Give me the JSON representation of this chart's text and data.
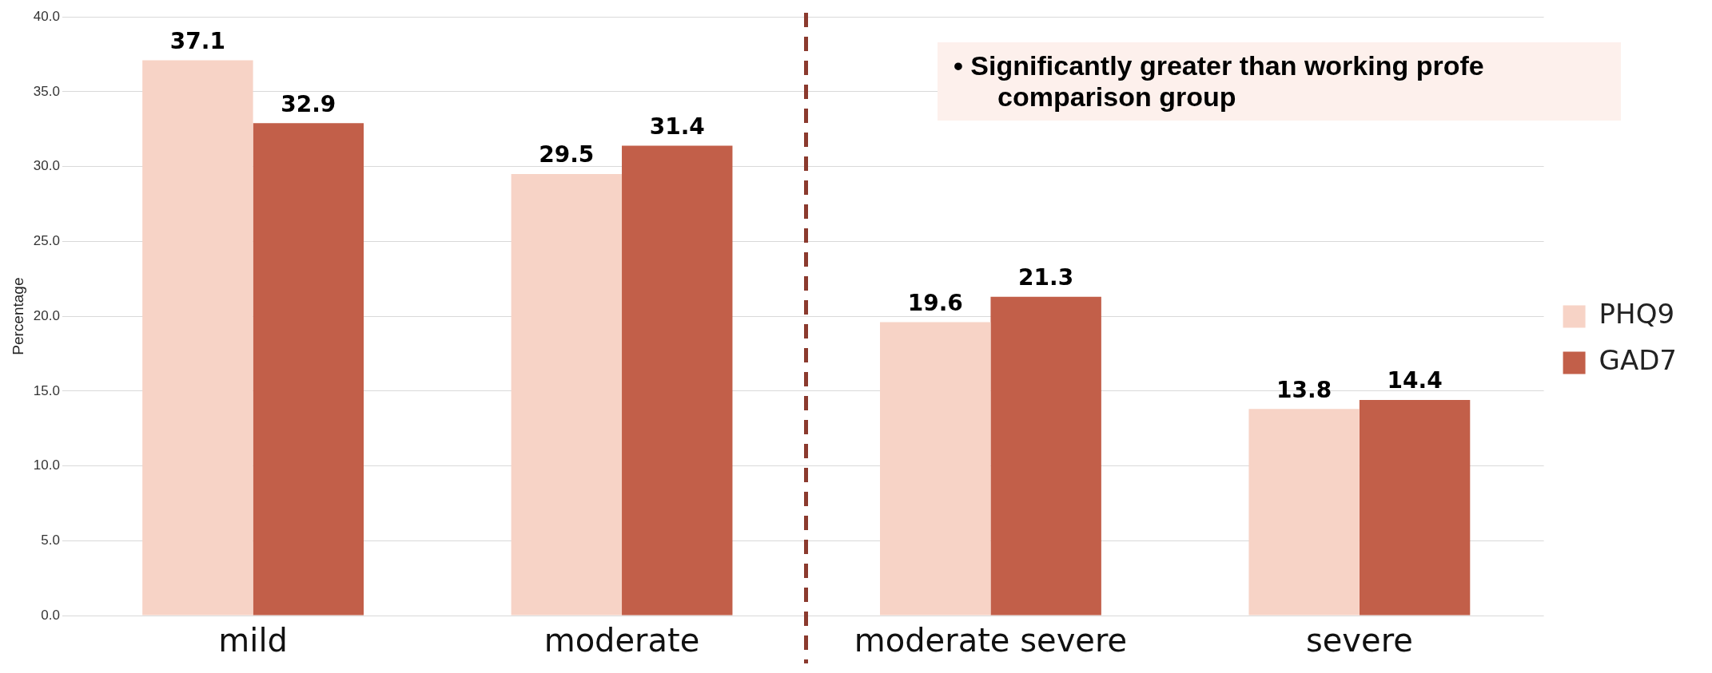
{
  "chart_data": {
    "type": "bar",
    "ylabel": "Percentage",
    "categories": [
      "mild",
      "moderate",
      "moderate severe",
      "severe"
    ],
    "series": [
      {
        "name": "PHQ9",
        "color": "#f7d3c6",
        "values": [
          37.1,
          29.5,
          19.6,
          13.8
        ]
      },
      {
        "name": "GAD7",
        "color": "#c25f49",
        "values": [
          32.9,
          31.4,
          21.3,
          14.4
        ]
      }
    ],
    "ylim": [
      0,
      40
    ],
    "yticks": [
      {
        "value": 0,
        "label": "0.0"
      },
      {
        "value": 5,
        "label": "5.0"
      },
      {
        "value": 10,
        "label": "10.0"
      },
      {
        "value": 15,
        "label": "15.0"
      },
      {
        "value": 20,
        "label": "20.0"
      },
      {
        "value": 25,
        "label": "25.0"
      },
      {
        "value": 30,
        "label": "30.0"
      },
      {
        "value": 35,
        "label": "35.0"
      },
      {
        "value": 40,
        "label": "40.0"
      }
    ],
    "grid": "y",
    "legend": "right",
    "data_labels": true,
    "annotations": [
      "• Significantly greater than working profe comparison group"
    ]
  }
}
